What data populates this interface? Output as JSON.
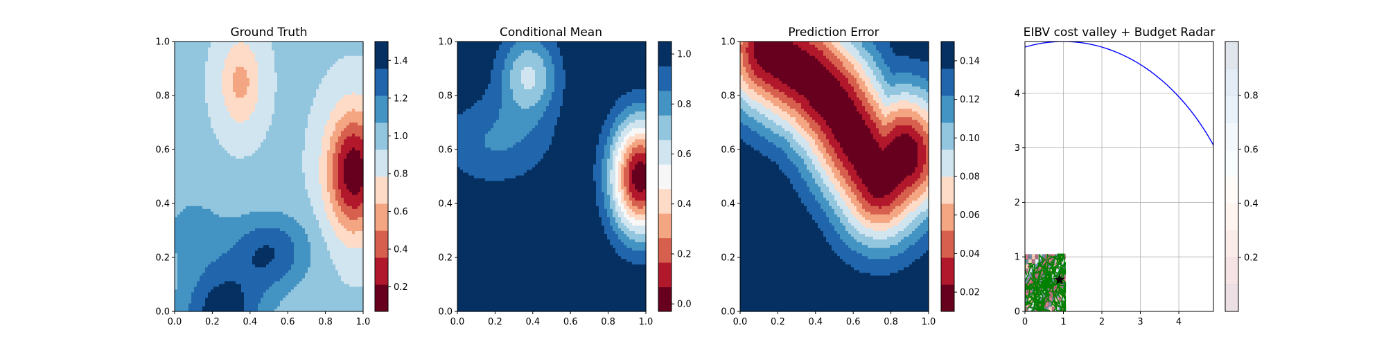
{
  "chart_data": [
    {
      "type": "heatmap",
      "title": "Ground Truth",
      "xlim": [
        0,
        1
      ],
      "ylim": [
        0,
        1
      ],
      "xticks": [
        "0.0",
        "0.2",
        "0.4",
        "0.6",
        "0.8",
        "1.0"
      ],
      "yticks": [
        "0.0",
        "0.2",
        "0.4",
        "0.6",
        "0.8",
        "1.0"
      ],
      "colormap": "RdBu",
      "colorbar_range": [
        0.07,
        1.5
      ],
      "colorbar_ticks": [
        "0.2",
        "0.4",
        "0.6",
        "0.8",
        "1.0",
        "1.2",
        "1.4"
      ],
      "colorbar_tick_values": [
        0.2,
        0.4,
        0.6,
        0.8,
        1.0,
        1.2,
        1.4
      ],
      "field": {
        "base": 0.95,
        "bumps": [
          {
            "x": 0.95,
            "y": 0.52,
            "amp": -0.85,
            "sx": 0.1,
            "sy": 0.16
          },
          {
            "x": 0.35,
            "y": 0.85,
            "amp": -0.35,
            "sx": 0.08,
            "sy": 0.12
          },
          {
            "x": 0.25,
            "y": 0.0,
            "amp": 0.5,
            "sx": 0.15,
            "sy": 0.12
          },
          {
            "x": 0.5,
            "y": 0.22,
            "amp": 0.4,
            "sx": 0.15,
            "sy": 0.1
          },
          {
            "x": 0.1,
            "y": 0.3,
            "amp": 0.18,
            "sx": 0.12,
            "sy": 0.1
          }
        ]
      }
    },
    {
      "type": "heatmap",
      "title": "Conditional Mean",
      "xlim": [
        0,
        1
      ],
      "ylim": [
        0,
        1
      ],
      "xticks": [
        "0.0",
        "0.2",
        "0.4",
        "0.6",
        "0.8",
        "1.0"
      ],
      "yticks": [
        "0.0",
        "0.2",
        "0.4",
        "0.6",
        "0.8",
        "1.0"
      ],
      "colormap": "RdBu",
      "colorbar_range": [
        -0.03,
        1.05
      ],
      "colorbar_ticks": [
        "0.0",
        "0.2",
        "0.4",
        "0.6",
        "0.8",
        "1.0"
      ],
      "colorbar_tick_values": [
        0.0,
        0.2,
        0.4,
        0.6,
        0.8,
        1.0
      ],
      "field": {
        "base": 1.05,
        "bumps": [
          {
            "x": 0.97,
            "y": 0.5,
            "amp": -1.05,
            "sx": 0.11,
            "sy": 0.15
          },
          {
            "x": 0.38,
            "y": 0.88,
            "amp": -0.4,
            "sx": 0.11,
            "sy": 0.11
          },
          {
            "x": 0.2,
            "y": 0.63,
            "amp": -0.2,
            "sx": 0.22,
            "sy": 0.12
          }
        ]
      }
    },
    {
      "type": "heatmap",
      "title": "Prediction Error",
      "xlim": [
        0,
        1
      ],
      "ylim": [
        0,
        1
      ],
      "xticks": [
        "0.0",
        "0.2",
        "0.4",
        "0.6",
        "0.8",
        "1.0"
      ],
      "yticks": [
        "0.0",
        "0.2",
        "0.4",
        "0.6",
        "0.8",
        "1.0"
      ],
      "colormap": "RdBu",
      "colorbar_range": [
        0.01,
        0.15
      ],
      "colorbar_ticks": [
        "0.02",
        "0.04",
        "0.06",
        "0.08",
        "0.10",
        "0.12",
        "0.14"
      ],
      "colorbar_tick_values": [
        0.02,
        0.04,
        0.06,
        0.08,
        0.1,
        0.12,
        0.14
      ],
      "field": {
        "base": 0.15,
        "path": [
          [
            0.15,
            0.97
          ],
          [
            0.37,
            0.87
          ],
          [
            0.5,
            0.77
          ],
          [
            0.62,
            0.63
          ],
          [
            0.74,
            0.5
          ],
          [
            0.87,
            0.58
          ]
        ],
        "amp": -0.14,
        "sigma": 0.17
      }
    },
    {
      "type": "line",
      "title": "EIBV cost valley + Budget Radar",
      "xlim": [
        0,
        4.9
      ],
      "ylim": [
        0,
        4.95
      ],
      "xticks": [
        "0",
        "1",
        "2",
        "3",
        "4"
      ],
      "yticks": [
        "0",
        "1",
        "2",
        "3",
        "4"
      ],
      "grid": true,
      "budget_radar": {
        "center": [
          1.0,
          0.0
        ],
        "radius": 4.95,
        "color": "#0000ff"
      },
      "cost_valley_extent": [
        0,
        1.05,
        0,
        1.05
      ],
      "path_color": "#008000",
      "current_location_marker": "star",
      "current_location": [
        0.9,
        0.58
      ],
      "colormap": "RdBu",
      "colorbar_range": [
        0.0,
        1.0
      ],
      "colorbar_ticks": [
        "0.2",
        "0.4",
        "0.6",
        "0.8"
      ],
      "colorbar_tick_values": [
        0.2,
        0.4,
        0.6,
        0.8
      ],
      "colorbar_alpha": 0.12
    }
  ]
}
